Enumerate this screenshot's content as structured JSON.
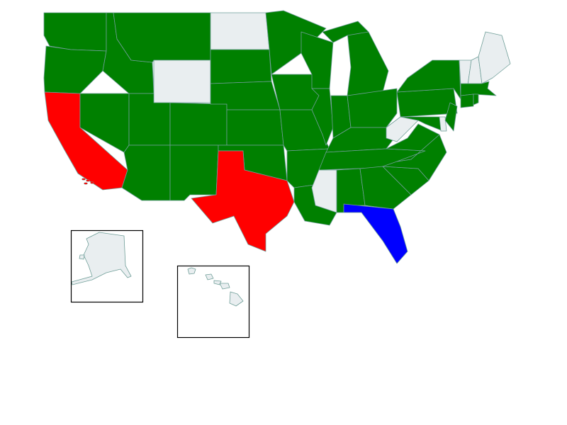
{
  "colors": {
    "green": "#008000",
    "red": "#ff0000",
    "blue": "#0000ff",
    "none": "#e9eef0",
    "border": "#6f9e98"
  },
  "states": {
    "WA": "green",
    "OR": "green",
    "CA": "red",
    "NV": "green",
    "ID": "green",
    "MT": "green",
    "WY": "none",
    "UT": "green",
    "CO": "green",
    "AZ": "green",
    "NM": "green",
    "ND": "none",
    "SD": "green",
    "NE": "green",
    "KS": "green",
    "OK": "green",
    "TX": "red",
    "MN": "green",
    "IA": "green",
    "MO": "green",
    "AR": "green",
    "LA": "green",
    "WI": "green",
    "IL": "green",
    "MI": "green",
    "IN": "green",
    "OH": "green",
    "KY": "green",
    "TN": "green",
    "MS": "none",
    "AL": "green",
    "GA": "green",
    "FL": "blue",
    "SC": "green",
    "NC": "green",
    "VA": "green",
    "WV": "none",
    "PA": "green",
    "NY": "green",
    "MD": "green",
    "DE": "none",
    "NJ": "green",
    "VT": "none",
    "NH": "none",
    "ME": "none",
    "MA": "green",
    "CT": "green",
    "RI": "green",
    "AK": "none",
    "HI": "none"
  }
}
